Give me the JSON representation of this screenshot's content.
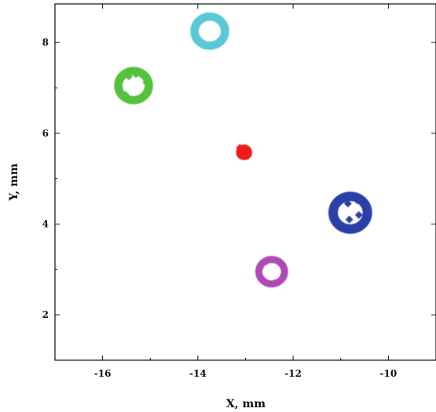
{
  "chart_data": {
    "type": "scatter",
    "xlabel": "X, mm",
    "ylabel": "Y, mm",
    "xlim": [
      -17,
      -9
    ],
    "ylim": [
      1,
      8.85
    ],
    "x_ticks": [
      -16,
      -14,
      -12,
      -10
    ],
    "y_ticks": [
      2,
      4,
      6,
      8
    ],
    "x_tick_labels": [
      "-16",
      "-14",
      "-12",
      "-10"
    ],
    "y_tick_labels": [
      "2",
      "4",
      "6",
      "8"
    ],
    "grid": false,
    "legend": false,
    "series": [
      {
        "shape": "ring",
        "color": "#5cc8d6",
        "center": [
          -13.75,
          8.25
        ],
        "radius": 0.32,
        "points": [
          [
            -13.75,
            8.57
          ],
          [
            -13.48,
            8.47
          ],
          [
            -13.43,
            8.25
          ],
          [
            -13.49,
            8.03
          ],
          [
            -13.75,
            7.93
          ],
          [
            -14.01,
            8.03
          ],
          [
            -14.07,
            8.25
          ],
          [
            -14.02,
            8.47
          ],
          [
            -13.62,
            8.55
          ],
          [
            -13.88,
            7.95
          ]
        ]
      },
      {
        "shape": "ring",
        "color": "#55c23c",
        "center": [
          -15.35,
          7.05
        ],
        "radius": 0.32,
        "points": [
          [
            -15.55,
            7.28
          ],
          [
            -15.3,
            7.3
          ],
          [
            -15.08,
            7.12
          ],
          [
            -15.05,
            6.88
          ],
          [
            -15.28,
            6.75
          ],
          [
            -15.52,
            6.85
          ],
          [
            -15.66,
            7.05
          ],
          [
            -15.18,
            6.8
          ],
          [
            -15.45,
            7.25
          ]
        ]
      },
      {
        "shape": "blob",
        "color": "#ee1c1c",
        "center": [
          -13.03,
          5.58
        ],
        "radius": 0.17,
        "points": [
          [
            -13.03,
            5.58
          ],
          [
            -13.12,
            5.68
          ],
          [
            -12.95,
            5.5
          ],
          [
            -13.08,
            5.5
          ],
          [
            -12.97,
            5.65
          ]
        ]
      },
      {
        "shape": "ring",
        "color": "#2c3fa6",
        "center": [
          -10.8,
          4.25
        ],
        "radius": 0.36,
        "points": [
          [
            -10.95,
            4.55
          ],
          [
            -10.65,
            4.52
          ],
          [
            -10.46,
            4.3
          ],
          [
            -10.5,
            4.06
          ],
          [
            -10.75,
            3.92
          ],
          [
            -11.05,
            4.0
          ],
          [
            -11.15,
            4.25
          ],
          [
            -10.85,
            4.45
          ],
          [
            -10.62,
            4.2
          ],
          [
            -10.82,
            4.1
          ]
        ]
      },
      {
        "shape": "ring",
        "color": "#b049b8",
        "center": [
          -12.45,
          2.95
        ],
        "radius": 0.27,
        "points": [
          [
            -12.45,
            3.22
          ],
          [
            -12.22,
            3.1
          ],
          [
            -12.2,
            2.88
          ],
          [
            -12.4,
            2.7
          ],
          [
            -12.65,
            2.8
          ],
          [
            -12.7,
            3.02
          ],
          [
            -12.55,
            3.18
          ]
        ]
      }
    ]
  }
}
